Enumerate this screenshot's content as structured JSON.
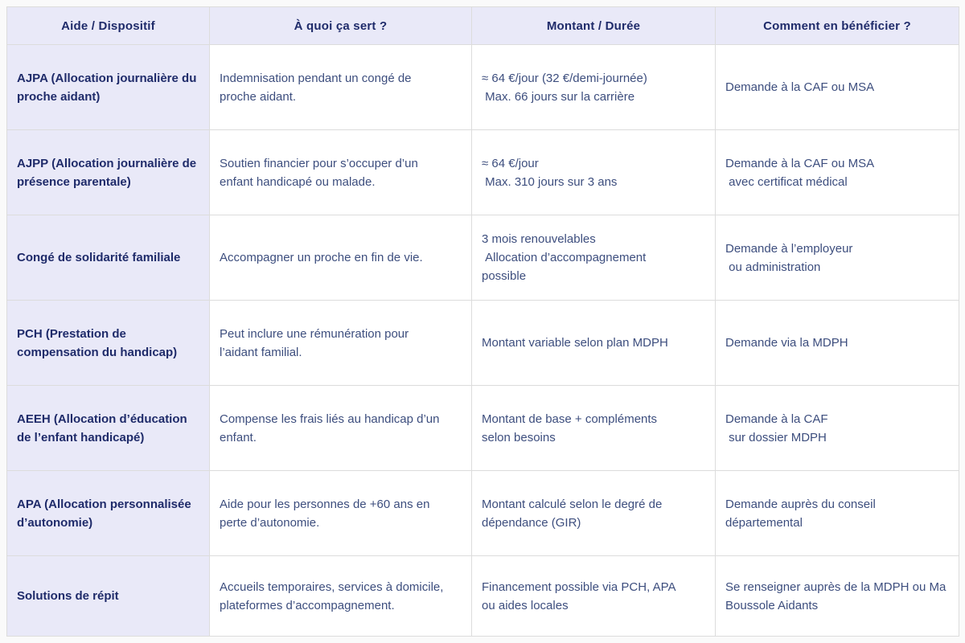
{
  "colors": {
    "header_background": "#e9e9f8",
    "header_text": "#1f2b6a",
    "body_text": "#3d4e7e",
    "border": "#dcdcdc",
    "cell_background": "#ffffff"
  },
  "table": {
    "headers": [
      "Aide / Dispositif",
      "À quoi ça sert ?",
      "Montant / Durée",
      "Comment en bénéficier ?"
    ],
    "rows": [
      {
        "aide": "AJPA (Allocation journalière du proche aidant)",
        "usage": "Indemnisation pendant un congé de proche aidant.",
        "montant": "≈ 64 €/jour (32 €/demi-journée)\n Max. 66 jours sur la carrière",
        "comment": "Demande à la CAF ou MSA"
      },
      {
        "aide": "AJPP (Allocation journalière de présence parentale)",
        "usage": "Soutien financier pour s’occuper d’un enfant handicapé ou malade.",
        "montant": "≈ 64 €/jour\n Max. 310 jours sur 3 ans",
        "comment": "Demande à la CAF ou MSA\n avec certificat médical"
      },
      {
        "aide": "Congé de solidarité familiale",
        "usage": "Accompagner un proche en fin de vie.",
        "montant": "3 mois renouvelables\n Allocation d’accompagnement possible",
        "comment": "Demande à l’employeur\n ou administration"
      },
      {
        "aide": "PCH (Prestation de compensation du handicap)",
        "usage": "Peut inclure une rémunération pour l’aidant familial.",
        "montant": "Montant variable selon plan MDPH",
        "comment": "Demande via la MDPH"
      },
      {
        "aide": "AEEH (Allocation d’éducation de l’enfant handicapé)",
        "usage": "Compense les frais liés au handicap d’un enfant.",
        "montant": "Montant de base + compléments selon besoins",
        "comment": "Demande à la CAF\n sur dossier MDPH"
      },
      {
        "aide": "APA (Allocation personnalisée d’autonomie)",
        "usage": "Aide pour les personnes de +60 ans en perte d’autonomie.",
        "montant": "Montant calculé selon le degré de dépendance (GIR)",
        "comment": "Demande auprès du conseil départemental"
      },
      {
        "aide": "Solutions de répit",
        "usage": "Accueils temporaires, services à domicile, plateformes d’accompagnement.",
        "montant": "Financement possible via PCH, APA ou aides locales",
        "comment": "Se renseigner auprès de la MDPH ou Ma Boussole Aidants"
      }
    ]
  }
}
